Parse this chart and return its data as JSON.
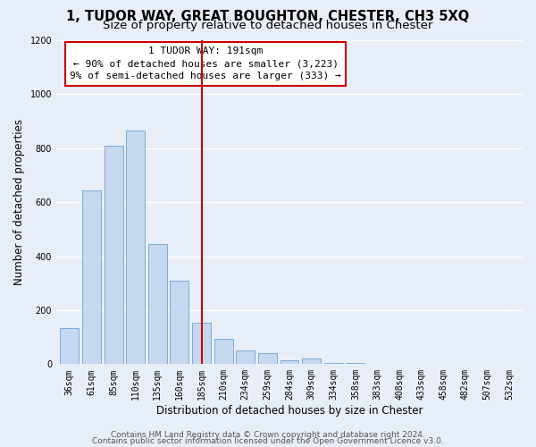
{
  "title": "1, TUDOR WAY, GREAT BOUGHTON, CHESTER, CH3 5XQ",
  "subtitle": "Size of property relative to detached houses in Chester",
  "xlabel": "Distribution of detached houses by size in Chester",
  "ylabel": "Number of detached properties",
  "bar_labels": [
    "36sqm",
    "61sqm",
    "85sqm",
    "110sqm",
    "135sqm",
    "160sqm",
    "185sqm",
    "210sqm",
    "234sqm",
    "259sqm",
    "284sqm",
    "309sqm",
    "334sqm",
    "358sqm",
    "383sqm",
    "408sqm",
    "433sqm",
    "458sqm",
    "482sqm",
    "507sqm",
    "532sqm"
  ],
  "bar_values": [
    135,
    645,
    810,
    865,
    445,
    310,
    155,
    95,
    52,
    40,
    15,
    20,
    5,
    3,
    2,
    1,
    0,
    1,
    0,
    0,
    1
  ],
  "bar_color": "#c5d8f0",
  "bar_edge_color": "#7aadd4",
  "vline_x": 6,
  "vline_color": "#cc0000",
  "annotation_title": "1 TUDOR WAY: 191sqm",
  "annotation_line1": "← 90% of detached houses are smaller (3,223)",
  "annotation_line2": "9% of semi-detached houses are larger (333) →",
  "ylim": [
    0,
    1200
  ],
  "yticks": [
    0,
    200,
    400,
    600,
    800,
    1000,
    1200
  ],
  "footer_line1": "Contains HM Land Registry data © Crown copyright and database right 2024.",
  "footer_line2": "Contains public sector information licensed under the Open Government Licence v3.0.",
  "bg_color": "#e8eef8",
  "plot_bg_color": "#e8eef8",
  "grid_color": "#ffffff",
  "title_fontsize": 10.5,
  "subtitle_fontsize": 9.5,
  "axis_label_fontsize": 8.5,
  "tick_fontsize": 7,
  "annot_fontsize": 8,
  "footer_fontsize": 6.5
}
